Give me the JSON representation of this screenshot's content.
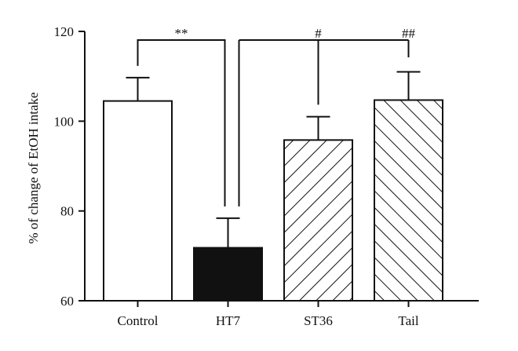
{
  "chart_data": {
    "type": "bar",
    "categories": [
      "Control",
      "HT7",
      "ST36",
      "Tail"
    ],
    "values": [
      104.5,
      71.8,
      95.8,
      104.7
    ],
    "errors": [
      5.2,
      6.6,
      5.2,
      6.3
    ],
    "fills": [
      "white",
      "black",
      "hatch-back",
      "hatch-forward"
    ],
    "title": "",
    "xlabel": "",
    "ylabel": "% of change of EtOH intake",
    "ylim": [
      60,
      120
    ],
    "yticks": [
      60,
      80,
      100,
      120
    ],
    "grid": false,
    "legend": "none",
    "annotations": [
      {
        "text": "**",
        "from": 0,
        "to": 1
      },
      {
        "text": "#",
        "from": 1,
        "to": 2
      },
      {
        "text": "##",
        "from": 1,
        "to": 3
      }
    ]
  }
}
